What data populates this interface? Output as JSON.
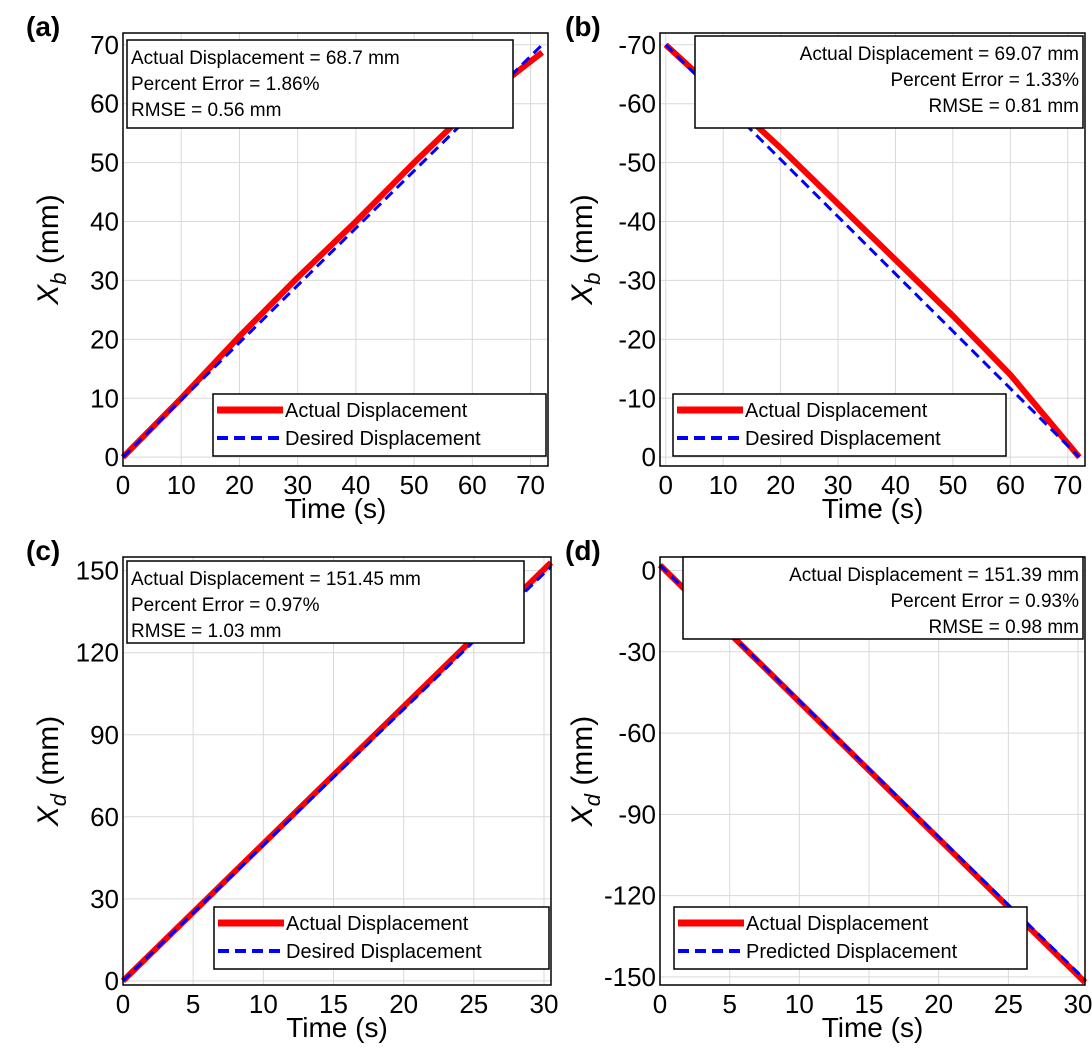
{
  "chart_data": [
    {
      "panel": "(a)",
      "type": "line",
      "xlabel": "Time (s)",
      "ylabel_main": "X",
      "ylabel_sub": "b",
      "ylabel_unit": " (mm)",
      "xlim": [
        0,
        73
      ],
      "ylim": [
        -1.5,
        72
      ],
      "xticks": [
        0,
        10,
        20,
        30,
        40,
        50,
        60,
        70
      ],
      "yticks": [
        0,
        10,
        20,
        30,
        40,
        50,
        60,
        70
      ],
      "info_align": "left",
      "info": [
        "Actual Displacement = 68.7 mm",
        "Percent Error = 1.86%",
        "RMSE = 0.56 mm"
      ],
      "series": [
        {
          "name": "Actual Displacement",
          "color": "#ff0000",
          "dash": "solid",
          "x": [
            0,
            10,
            20,
            30,
            40,
            50,
            60,
            72
          ],
          "y": [
            0,
            10,
            20.5,
            30.5,
            40,
            50,
            59.5,
            68.7
          ]
        },
        {
          "name": "Desired Displacement",
          "color": "#0000ff",
          "dash": "dashed",
          "x": [
            0,
            72
          ],
          "y": [
            0,
            70
          ]
        }
      ]
    },
    {
      "panel": "(b)",
      "type": "line",
      "xlabel": "Time (s)",
      "ylabel_main": "X",
      "ylabel_sub": "b",
      "ylabel_unit": " (mm)",
      "xlim": [
        -1,
        73
      ],
      "ylim": [
        1.5,
        -72
      ],
      "xticks": [
        0,
        10,
        20,
        30,
        40,
        50,
        60,
        70
      ],
      "yticks": [
        0,
        -10,
        -20,
        -30,
        -40,
        -50,
        -60,
        -70
      ],
      "info_align": "right",
      "info": [
        "Actual Displacement = 69.07 mm",
        "Percent Error = 1.33%",
        "RMSE = 0.81 mm"
      ],
      "series": [
        {
          "name": "Actual Displacement",
          "color": "#ff0000",
          "dash": "solid",
          "x": [
            0,
            5,
            10,
            20,
            30,
            40,
            50,
            60,
            72
          ],
          "y": [
            -70,
            -65.5,
            -61.5,
            -52.5,
            -43,
            -33.5,
            -24,
            -14,
            0
          ]
        },
        {
          "name": "Desired Displacement",
          "color": "#0000ff",
          "dash": "dashed",
          "x": [
            0,
            72
          ],
          "y": [
            -70,
            0
          ]
        }
      ]
    },
    {
      "panel": "(c)",
      "type": "line",
      "xlabel": "Time (s)",
      "ylabel_main": "X",
      "ylabel_sub": "d",
      "ylabel_unit": "  (mm)",
      "xlim": [
        0,
        30.5
      ],
      "ylim": [
        -1.5,
        155
      ],
      "xticks": [
        0,
        5,
        10,
        15,
        20,
        25,
        30
      ],
      "yticks": [
        0,
        30,
        60,
        90,
        120,
        150
      ],
      "info_align": "left",
      "info": [
        "Actual Displacement = 151.45 mm",
        "Percent Error = 0.97%",
        "RMSE = 1.03 mm"
      ],
      "series": [
        {
          "name": "Actual Displacement",
          "color": "#ff0000",
          "dash": "solid",
          "x": [
            0,
            30.5
          ],
          "y": [
            0,
            153
          ]
        },
        {
          "name": "Desired Displacement",
          "color": "#0000ff",
          "dash": "dashed",
          "x": [
            0,
            30.5
          ],
          "y": [
            0,
            151.5
          ]
        }
      ]
    },
    {
      "panel": "(d)",
      "type": "line",
      "xlabel": "Time (s)",
      "ylabel_main": "X",
      "ylabel_sub": "d",
      "ylabel_unit": "  (mm)",
      "xlim": [
        0,
        30.5
      ],
      "ylim": [
        -153,
        5
      ],
      "xticks": [
        0,
        5,
        10,
        15,
        20,
        25,
        30
      ],
      "yticks": [
        0,
        -30,
        -60,
        -90,
        -120,
        -150
      ],
      "info_align": "right",
      "info": [
        "Actual Displacement = 151.39 mm",
        "Percent Error = 0.93%",
        "RMSE = 0.98 mm"
      ],
      "series": [
        {
          "name": "Actual Displacement",
          "color": "#ff0000",
          "dash": "solid",
          "x": [
            0,
            30.5
          ],
          "y": [
            2,
            -152
          ]
        },
        {
          "name": "Predicted Displacement",
          "color": "#0000ff",
          "dash": "dashed",
          "x": [
            0,
            30.5
          ],
          "y": [
            2,
            -151
          ]
        }
      ]
    }
  ]
}
